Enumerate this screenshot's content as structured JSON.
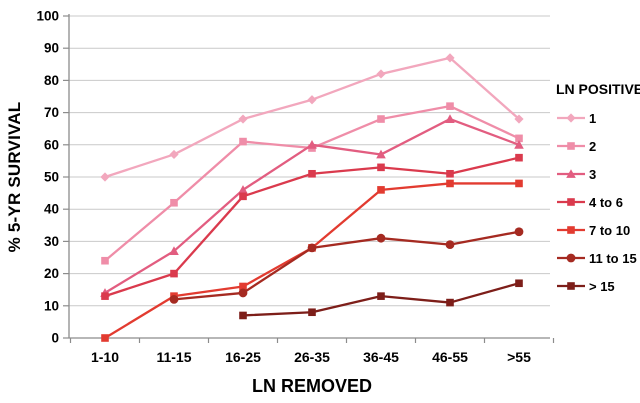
{
  "chart_data": {
    "type": "line",
    "title": "",
    "xlabel": "LN REMOVED",
    "ylabel": "% 5-YR SURVIVAL",
    "legend_title": "LN POSITIVE",
    "legend_position": "right",
    "grid": "horizontal",
    "ylim": [
      0,
      100
    ],
    "yticks": [
      0,
      10,
      20,
      30,
      40,
      50,
      60,
      70,
      80,
      90,
      100
    ],
    "categories": [
      "1-10",
      "11-15",
      "16-25",
      "26-35",
      "36-45",
      "46-55",
      ">55"
    ],
    "series": [
      {
        "name": "1",
        "color": "#F2A7BD",
        "marker": "diamond",
        "values": [
          50,
          57,
          68,
          74,
          82,
          87,
          68
        ]
      },
      {
        "name": "2",
        "color": "#EF8DA8",
        "marker": "square",
        "values": [
          24,
          42,
          61,
          59,
          68,
          72,
          62
        ]
      },
      {
        "name": "3",
        "color": "#E25D80",
        "marker": "triangle",
        "values": [
          14,
          27,
          46,
          60,
          57,
          68,
          60
        ]
      },
      {
        "name": "4 to 6",
        "color": "#DA3A4D",
        "marker": "square",
        "values": [
          13,
          20,
          44,
          51,
          53,
          51,
          56
        ]
      },
      {
        "name": "7 to 10",
        "color": "#E23B30",
        "marker": "square",
        "values": [
          0,
          13,
          16,
          28,
          46,
          48,
          48
        ]
      },
      {
        "name": "11 to 15",
        "color": "#A52A21",
        "marker": "circle",
        "values": [
          null,
          12,
          14,
          28,
          31,
          29,
          33
        ]
      },
      {
        "name": "> 15",
        "color": "#7D1E19",
        "marker": "square",
        "values": [
          null,
          null,
          7,
          8,
          13,
          11,
          17
        ]
      }
    ],
    "colors": {
      "gridline": "#C9C9C9",
      "axis": "#8C8C8C",
      "text": "#000000",
      "background": "#FFFFFF"
    }
  }
}
